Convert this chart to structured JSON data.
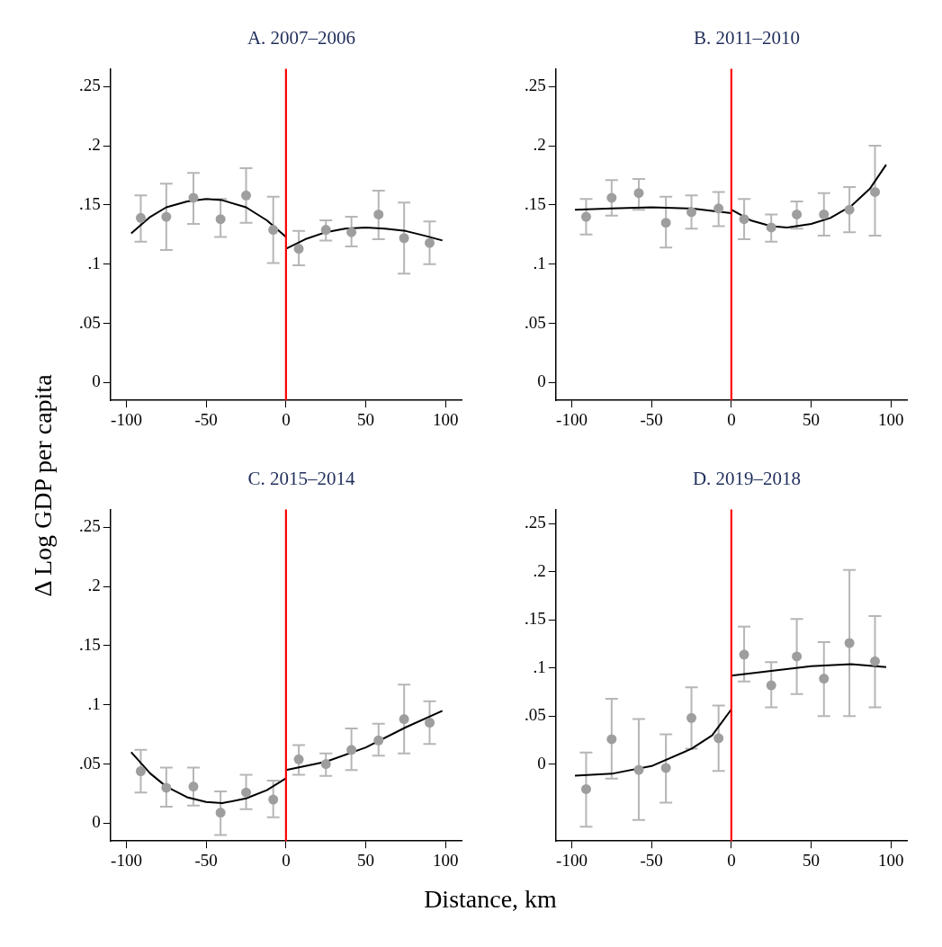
{
  "chart_data": [
    {
      "type": "scatter",
      "title": "A. 2007–2006",
      "ylabel": "Δ Log GDP per capita",
      "xlim": [
        -110,
        110
      ],
      "xticks": [
        -100,
        -50,
        0,
        50,
        100
      ],
      "ylim": [
        -0.015,
        0.265
      ],
      "yticks": [
        {
          "value": 0,
          "label": "0"
        },
        {
          "value": 0.05,
          "label": ".05"
        },
        {
          "value": 0.1,
          "label": ".1"
        },
        {
          "value": 0.15,
          "label": ".15"
        },
        {
          "value": 0.2,
          "label": ".2"
        },
        {
          "value": 0.25,
          "label": ".25"
        }
      ],
      "grid": false,
      "legend": false,
      "ref_lines": [
        {
          "axis": "x",
          "value": 0,
          "color": "#ff0000"
        }
      ],
      "series": [
        {
          "type": "scatter",
          "color": "#9e9e9e",
          "x": [
            -91,
            -75,
            -58,
            -41,
            -25,
            -8,
            8,
            25,
            41,
            58,
            74,
            90
          ],
          "values": [
            0.139,
            0.14,
            0.156,
            0.138,
            0.158,
            0.129,
            0.113,
            0.129,
            0.127,
            0.142,
            0.122,
            0.118
          ],
          "errors": [
            [
              0.119,
              0.158
            ],
            [
              0.112,
              0.168
            ],
            [
              0.134,
              0.177
            ],
            [
              0.123,
              0.155
            ],
            [
              0.135,
              0.181
            ],
            [
              0.101,
              0.157
            ],
            [
              0.099,
              0.128
            ],
            [
              0.12,
              0.137
            ],
            [
              0.115,
              0.14
            ],
            [
              0.121,
              0.162
            ],
            [
              0.092,
              0.152
            ],
            [
              0.1,
              0.136
            ]
          ]
        },
        {
          "type": "line",
          "color": "#000000",
          "x": [
            -97,
            -85,
            -75,
            -62,
            -50,
            -40,
            -25,
            -12,
            0
          ],
          "values": [
            0.126,
            0.14,
            0.148,
            0.153,
            0.155,
            0.154,
            0.148,
            0.137,
            0.123
          ]
        },
        {
          "type": "line",
          "color": "#000000",
          "x": [
            0,
            12,
            25,
            37,
            50,
            62,
            75,
            87,
            98
          ],
          "values": [
            0.113,
            0.121,
            0.127,
            0.13,
            0.131,
            0.13,
            0.128,
            0.124,
            0.12
          ]
        }
      ]
    },
    {
      "type": "scatter",
      "title": "B. 2011–2010",
      "xlim": [
        -110,
        110
      ],
      "xticks": [
        -100,
        -50,
        0,
        50,
        100
      ],
      "ylim": [
        -0.015,
        0.265
      ],
      "yticks": [
        {
          "value": 0,
          "label": "0"
        },
        {
          "value": 0.05,
          "label": ".05"
        },
        {
          "value": 0.1,
          "label": ".1"
        },
        {
          "value": 0.15,
          "label": ".15"
        },
        {
          "value": 0.2,
          "label": ".2"
        },
        {
          "value": 0.25,
          "label": ".25"
        }
      ],
      "grid": false,
      "legend": false,
      "ref_lines": [
        {
          "axis": "x",
          "value": 0,
          "color": "#ff0000"
        }
      ],
      "series": [
        {
          "type": "scatter",
          "color": "#9e9e9e",
          "x": [
            -91,
            -75,
            -58,
            -41,
            -25,
            -8,
            8,
            25,
            41,
            58,
            74,
            90
          ],
          "values": [
            0.14,
            0.156,
            0.16,
            0.135,
            0.144,
            0.147,
            0.138,
            0.131,
            0.142,
            0.142,
            0.146,
            0.161
          ],
          "errors": [
            [
              0.125,
              0.155
            ],
            [
              0.141,
              0.171
            ],
            [
              0.146,
              0.172
            ],
            [
              0.114,
              0.157
            ],
            [
              0.13,
              0.158
            ],
            [
              0.132,
              0.161
            ],
            [
              0.121,
              0.155
            ],
            [
              0.119,
              0.142
            ],
            [
              0.13,
              0.153
            ],
            [
              0.124,
              0.16
            ],
            [
              0.127,
              0.165
            ],
            [
              0.124,
              0.2
            ]
          ]
        },
        {
          "type": "line",
          "color": "#000000",
          "x": [
            -98,
            -75,
            -50,
            -25,
            -12,
            0
          ],
          "values": [
            0.146,
            0.147,
            0.148,
            0.147,
            0.145,
            0.143
          ]
        },
        {
          "type": "line",
          "color": "#000000",
          "x": [
            0,
            12,
            25,
            35,
            50,
            62,
            75,
            87,
            97
          ],
          "values": [
            0.146,
            0.137,
            0.132,
            0.131,
            0.134,
            0.139,
            0.149,
            0.164,
            0.184
          ]
        }
      ]
    },
    {
      "type": "scatter",
      "title": "C. 2015–2014",
      "xlabel": "Distance, km",
      "xlim": [
        -110,
        110
      ],
      "xticks": [
        -100,
        -50,
        0,
        50,
        100
      ],
      "ylim": [
        -0.015,
        0.265
      ],
      "yticks": [
        {
          "value": 0,
          "label": "0"
        },
        {
          "value": 0.05,
          "label": ".05"
        },
        {
          "value": 0.1,
          "label": ".1"
        },
        {
          "value": 0.15,
          "label": ".15"
        },
        {
          "value": 0.2,
          "label": ".2"
        },
        {
          "value": 0.25,
          "label": ".25"
        }
      ],
      "grid": false,
      "legend": false,
      "ref_lines": [
        {
          "axis": "x",
          "value": 0,
          "color": "#ff0000"
        }
      ],
      "series": [
        {
          "type": "scatter",
          "color": "#9e9e9e",
          "x": [
            -91,
            -75,
            -58,
            -41,
            -25,
            -8,
            8,
            25,
            41,
            58,
            74,
            90
          ],
          "values": [
            0.044,
            0.03,
            0.031,
            0.009,
            0.026,
            0.02,
            0.054,
            0.05,
            0.062,
            0.07,
            0.088,
            0.085
          ],
          "errors": [
            [
              0.026,
              0.062
            ],
            [
              0.014,
              0.047
            ],
            [
              0.015,
              0.047
            ],
            [
              -0.01,
              0.027
            ],
            [
              0.012,
              0.041
            ],
            [
              0.005,
              0.036
            ],
            [
              0.041,
              0.066
            ],
            [
              0.04,
              0.059
            ],
            [
              0.045,
              0.08
            ],
            [
              0.057,
              0.084
            ],
            [
              0.059,
              0.117
            ],
            [
              0.067,
              0.103
            ]
          ]
        },
        {
          "type": "line",
          "color": "#000000",
          "x": [
            -97,
            -85,
            -75,
            -62,
            -50,
            -40,
            -25,
            -12,
            0
          ],
          "values": [
            0.06,
            0.042,
            0.031,
            0.022,
            0.018,
            0.017,
            0.021,
            0.028,
            0.038
          ]
        },
        {
          "type": "line",
          "color": "#000000",
          "x": [
            0,
            25,
            50,
            75,
            98
          ],
          "values": [
            0.045,
            0.052,
            0.064,
            0.081,
            0.095
          ]
        }
      ]
    },
    {
      "type": "scatter",
      "title": "D. 2019–2018",
      "xlim": [
        -110,
        110
      ],
      "xticks": [
        -100,
        -50,
        0,
        50,
        100
      ],
      "ylim": [
        -0.08,
        0.265
      ],
      "yticks": [
        {
          "value": 0,
          "label": "0"
        },
        {
          "value": 0.05,
          "label": ".05"
        },
        {
          "value": 0.1,
          "label": ".1"
        },
        {
          "value": 0.15,
          "label": ".15"
        },
        {
          "value": 0.2,
          "label": ".2"
        },
        {
          "value": 0.25,
          "label": ".25"
        }
      ],
      "grid": false,
      "legend": false,
      "ref_lines": [
        {
          "axis": "x",
          "value": 0,
          "color": "#ff0000"
        }
      ],
      "series": [
        {
          "type": "scatter",
          "color": "#9e9e9e",
          "x": [
            -91,
            -75,
            -58,
            -41,
            -25,
            -8,
            8,
            25,
            41,
            58,
            74,
            90
          ],
          "values": [
            -0.026,
            0.026,
            -0.006,
            -0.004,
            0.048,
            0.027,
            0.114,
            0.082,
            0.112,
            0.089,
            0.126,
            0.107
          ],
          "errors": [
            [
              -0.065,
              0.012
            ],
            [
              -0.015,
              0.068
            ],
            [
              -0.058,
              0.047
            ],
            [
              -0.04,
              0.031
            ],
            [
              0.016,
              0.08
            ],
            [
              -0.007,
              0.061
            ],
            [
              0.086,
              0.143
            ],
            [
              0.059,
              0.106
            ],
            [
              0.073,
              0.151
            ],
            [
              0.05,
              0.127
            ],
            [
              0.05,
              0.202
            ],
            [
              0.059,
              0.154
            ]
          ]
        },
        {
          "type": "line",
          "color": "#000000",
          "x": [
            -98,
            -75,
            -50,
            -25,
            -12,
            0
          ],
          "values": [
            -0.012,
            -0.01,
            -0.002,
            0.016,
            0.03,
            0.057
          ]
        },
        {
          "type": "line",
          "color": "#000000",
          "x": [
            0,
            25,
            50,
            75,
            97
          ],
          "values": [
            0.092,
            0.097,
            0.102,
            0.104,
            0.101
          ]
        }
      ]
    }
  ]
}
